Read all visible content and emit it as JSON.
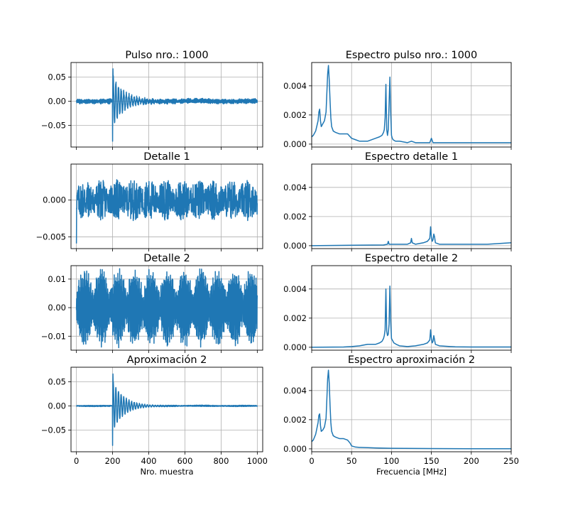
{
  "chart_data": [
    {
      "type": "line",
      "id": "pulse",
      "title": "Pulso nro.: 1000",
      "xlabel": "",
      "ylabel": "",
      "xlim": [
        -30,
        1030
      ],
      "ylim": [
        -0.095,
        0.08
      ],
      "xticks": [
        0,
        200,
        400,
        600,
        800,
        1000
      ],
      "xticklabels": [
        "",
        "",
        "",
        "",
        "",
        ""
      ],
      "yticks": [
        -0.05,
        0.0,
        0.05
      ],
      "yticklabels": [
        "−0.05",
        "0.00",
        "0.05"
      ],
      "grid": true,
      "color": "#1f77b4",
      "series": [
        {
          "kind": "transient",
          "peak": 0.067,
          "trough": -0.083,
          "onset": 200,
          "decay": 60,
          "carrier": 0.0046,
          "period": 40,
          "noise": 0.0015
        }
      ]
    },
    {
      "type": "line",
      "id": "pulse_spectrum",
      "title": "Espectro pulso nro.: 1000",
      "xlabel": "",
      "ylabel": "",
      "xlim": [
        0,
        250
      ],
      "ylim": [
        -0.0002,
        0.0056
      ],
      "xticks": [
        0,
        50,
        100,
        150,
        200,
        250
      ],
      "xticklabels": [
        "",
        "",
        "",
        "",
        "",
        ""
      ],
      "yticks": [
        0.0,
        0.002,
        0.004
      ],
      "yticklabels": [
        "0.000",
        "0.002",
        "0.004"
      ],
      "grid": true,
      "color": "#1f77b4",
      "series": [
        {
          "x": [
            0,
            2,
            5,
            8,
            9,
            10,
            11,
            12,
            14,
            16,
            18,
            19,
            20,
            21,
            22,
            23,
            24,
            25,
            27,
            30,
            35,
            40,
            45,
            50,
            55,
            60,
            70,
            80,
            85,
            88,
            90,
            91,
            92,
            93,
            94,
            95,
            96,
            97,
            98,
            99,
            100,
            101,
            102,
            105,
            110,
            120,
            125,
            130,
            140,
            148,
            150,
            152,
            155,
            160,
            180,
            200,
            220,
            250
          ],
          "y": [
            0.0005,
            0.0006,
            0.0009,
            0.0016,
            0.0022,
            0.0024,
            0.0016,
            0.0012,
            0.0014,
            0.0016,
            0.0022,
            0.0035,
            0.0048,
            0.0054,
            0.0044,
            0.003,
            0.0018,
            0.0012,
            0.0009,
            0.0008,
            0.0007,
            0.0007,
            0.0007,
            0.0004,
            0.0003,
            0.0002,
            0.0002,
            0.0004,
            0.0005,
            0.0006,
            0.0008,
            0.001,
            0.0018,
            0.0041,
            0.001,
            0.0006,
            0.001,
            0.0028,
            0.0046,
            0.0022,
            0.0006,
            0.0004,
            0.0003,
            0.0002,
            0.0002,
            0.0001,
            0.0002,
            0.0001,
            0.0001,
            0.0001,
            0.0004,
            0.0001,
            0.0001,
            0.0001,
            0.0001,
            0.0001,
            0.0001,
            0.0001
          ]
        }
      ]
    },
    {
      "type": "line",
      "id": "detail1",
      "title": "Detalle 1",
      "xlabel": "",
      "ylabel": "",
      "xlim": [
        -30,
        1030
      ],
      "ylim": [
        -0.0066,
        0.0049
      ],
      "xticks": [
        0,
        200,
        400,
        600,
        800,
        1000
      ],
      "xticklabels": [
        "",
        "",
        "",
        "",
        "",
        ""
      ],
      "yticks": [
        -0.005,
        0.0
      ],
      "yticklabels": [
        "−0.005",
        "0.000"
      ],
      "grid": true,
      "color": "#1f77b4",
      "series": [
        {
          "kind": "noise",
          "amp": 0.0028,
          "carrier": 0.0015,
          "period": 90,
          "spike": -0.0059
        }
      ]
    },
    {
      "type": "line",
      "id": "detail1_spectrum",
      "title": "Espectro detalle 1",
      "xlabel": "",
      "ylabel": "",
      "xlim": [
        0,
        250
      ],
      "ylim": [
        -0.0002,
        0.0056
      ],
      "xticks": [
        0,
        50,
        100,
        150,
        200,
        250
      ],
      "xticklabels": [
        "",
        "",
        "",
        "",
        "",
        ""
      ],
      "yticks": [
        0.0,
        0.002,
        0.004
      ],
      "yticklabels": [
        "0.000",
        "0.002",
        "0.004"
      ],
      "grid": true,
      "color": "#1f77b4",
      "series": [
        {
          "x": [
            0,
            50,
            90,
            95,
            96,
            97,
            100,
            110,
            120,
            124,
            125,
            126,
            130,
            140,
            145,
            148,
            149,
            150,
            151,
            152,
            153,
            154,
            155,
            160,
            180,
            200,
            220,
            250
          ],
          "y": [
            0.0,
            3e-05,
            5e-05,
            0.0001,
            0.0003,
            0.0001,
            0.0001,
            0.0001,
            0.0001,
            0.0002,
            0.0005,
            0.0002,
            0.0001,
            0.0002,
            0.0003,
            0.0005,
            0.0013,
            0.0006,
            0.0003,
            0.0004,
            0.0008,
            0.0006,
            0.0002,
            0.0001,
            0.0001,
            0.0001,
            0.0001,
            0.0002
          ]
        }
      ]
    },
    {
      "type": "line",
      "id": "detail2",
      "title": "Detalle 2",
      "xlabel": "",
      "ylabel": "",
      "xlim": [
        -30,
        1030
      ],
      "ylim": [
        -0.0149,
        0.0147
      ],
      "xticks": [
        0,
        200,
        400,
        600,
        800,
        1000
      ],
      "xticklabels": [
        "",
        "",
        "",
        "",
        "",
        ""
      ],
      "yticks": [
        -0.01,
        0.0,
        0.01
      ],
      "yticklabels": [
        "−0.01",
        "0.00",
        "0.01"
      ],
      "grid": true,
      "color": "#1f77b4",
      "series": [
        {
          "kind": "modulated",
          "amp": 0.0125,
          "period": 92,
          "noise": 0.0018
        }
      ]
    },
    {
      "type": "line",
      "id": "detail2_spectrum",
      "title": "Espectro detalle 2",
      "xlabel": "",
      "ylabel": "",
      "xlim": [
        0,
        250
      ],
      "ylim": [
        -0.0002,
        0.0056
      ],
      "xticks": [
        0,
        50,
        100,
        150,
        200,
        250
      ],
      "xticklabels": [
        "",
        "",
        "",
        "",
        "",
        ""
      ],
      "yticks": [
        0.0,
        0.002,
        0.004
      ],
      "yticklabels": [
        "0.000",
        "0.002",
        "0.004"
      ],
      "grid": true,
      "color": "#1f77b4",
      "series": [
        {
          "x": [
            0,
            40,
            50,
            60,
            70,
            80,
            85,
            88,
            90,
            91,
            92,
            93,
            94,
            95,
            96,
            97,
            98,
            99,
            100,
            101,
            103,
            106,
            110,
            120,
            130,
            140,
            145,
            148,
            149,
            150,
            151,
            152,
            153,
            154,
            155,
            160,
            180,
            200,
            250
          ],
          "y": [
            0.0,
            2e-05,
            5e-05,
            0.0001,
            0.0002,
            0.0002,
            0.0003,
            0.0004,
            0.0006,
            0.0008,
            0.0012,
            0.004,
            0.0011,
            0.0008,
            0.0009,
            0.0016,
            0.0042,
            0.0018,
            0.0006,
            0.0005,
            0.0003,
            0.0002,
            0.0001,
            5e-05,
            0.0001,
            0.0002,
            0.0003,
            0.0005,
            0.0012,
            0.0006,
            0.0003,
            0.0004,
            0.0008,
            0.0005,
            0.0002,
            0.0001,
            3e-05,
            2e-05,
            2e-05
          ]
        }
      ]
    },
    {
      "type": "line",
      "id": "approx2",
      "title": "Aproximación 2",
      "xlabel": "Nro. muestra",
      "ylabel": "",
      "xlim": [
        -30,
        1030
      ],
      "ylim": [
        -0.095,
        0.08
      ],
      "xticks": [
        0,
        200,
        400,
        600,
        800,
        1000
      ],
      "xticklabels": [
        "0",
        "200",
        "400",
        "600",
        "800",
        "1000"
      ],
      "yticks": [
        -0.05,
        0.0,
        0.05
      ],
      "yticklabels": [
        "−0.05",
        "0.00",
        "0.05"
      ],
      "grid": true,
      "color": "#1f77b4",
      "series": [
        {
          "kind": "transient",
          "peak": 0.066,
          "trough": -0.082,
          "onset": 200,
          "decay": 60,
          "carrier": 0.0012,
          "period": 200,
          "noise": 0.0004
        }
      ]
    },
    {
      "type": "line",
      "id": "approx2_spectrum",
      "title": "Espectro aproximación 2",
      "xlabel": "Frecuencia [MHz]",
      "ylabel": "",
      "xlim": [
        0,
        250
      ],
      "ylim": [
        -0.0002,
        0.0056
      ],
      "xticks": [
        0,
        50,
        100,
        150,
        200,
        250
      ],
      "xticklabels": [
        "0",
        "50",
        "100",
        "150",
        "200",
        "250"
      ],
      "yticks": [
        0.0,
        0.002,
        0.004
      ],
      "yticklabels": [
        "0.000",
        "0.002",
        "0.004"
      ],
      "grid": true,
      "color": "#1f77b4",
      "series": [
        {
          "x": [
            0,
            2,
            5,
            8,
            9,
            10,
            11,
            12,
            14,
            16,
            18,
            19,
            20,
            21,
            22,
            23,
            24,
            25,
            27,
            30,
            35,
            40,
            45,
            48,
            50,
            55,
            60,
            80,
            100,
            150,
            200,
            250
          ],
          "y": [
            0.0005,
            0.0006,
            0.001,
            0.0018,
            0.0023,
            0.0024,
            0.0016,
            0.0012,
            0.0013,
            0.0015,
            0.0021,
            0.0034,
            0.0048,
            0.0054,
            0.0045,
            0.003,
            0.0018,
            0.0012,
            0.0009,
            0.0008,
            0.0007,
            0.0007,
            0.0006,
            0.0004,
            0.0002,
            0.00012,
            0.0001,
            6e-05,
            4e-05,
            2e-05,
            1e-05,
            1e-05
          ]
        }
      ]
    }
  ]
}
